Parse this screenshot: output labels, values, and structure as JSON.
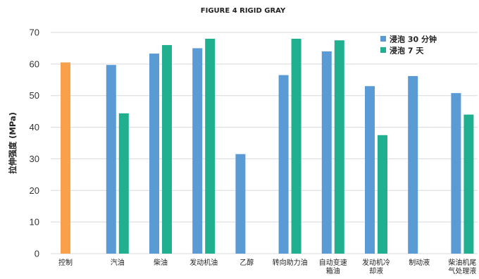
{
  "chart_data": {
    "type": "bar",
    "title": "FIGURE 4 RIGID GRAY",
    "ylabel": "拉伸强度 (MPa)",
    "xlabel": "",
    "ylim": [
      0,
      70
    ],
    "yticks": [
      0,
      10,
      20,
      30,
      40,
      50,
      60,
      70
    ],
    "grid": true,
    "legend_position": "top-right",
    "categories": [
      [
        "控制"
      ],
      [
        "汽油"
      ],
      [
        "柴油"
      ],
      [
        "发动机油"
      ],
      [
        "乙醇"
      ],
      [
        "转向助力油"
      ],
      [
        "自动变速",
        "箱油"
      ],
      [
        "发动机冷",
        "却液"
      ],
      [
        "制动液"
      ],
      [
        "柴油机尾",
        "气处理液"
      ]
    ],
    "control": {
      "value": 60.5,
      "color": "#F9A04A"
    },
    "series": [
      {
        "name": "浸泡 30 分钟",
        "color": "#5B9BD5",
        "values": [
          null,
          59.7,
          63.3,
          65,
          31.5,
          56.5,
          64,
          53,
          56.2,
          50.8
        ]
      },
      {
        "name": "浸泡 7 天",
        "color": "#21B08F",
        "values": [
          null,
          44.4,
          66,
          68,
          null,
          68,
          67.5,
          37.5,
          null,
          44
        ]
      }
    ]
  }
}
